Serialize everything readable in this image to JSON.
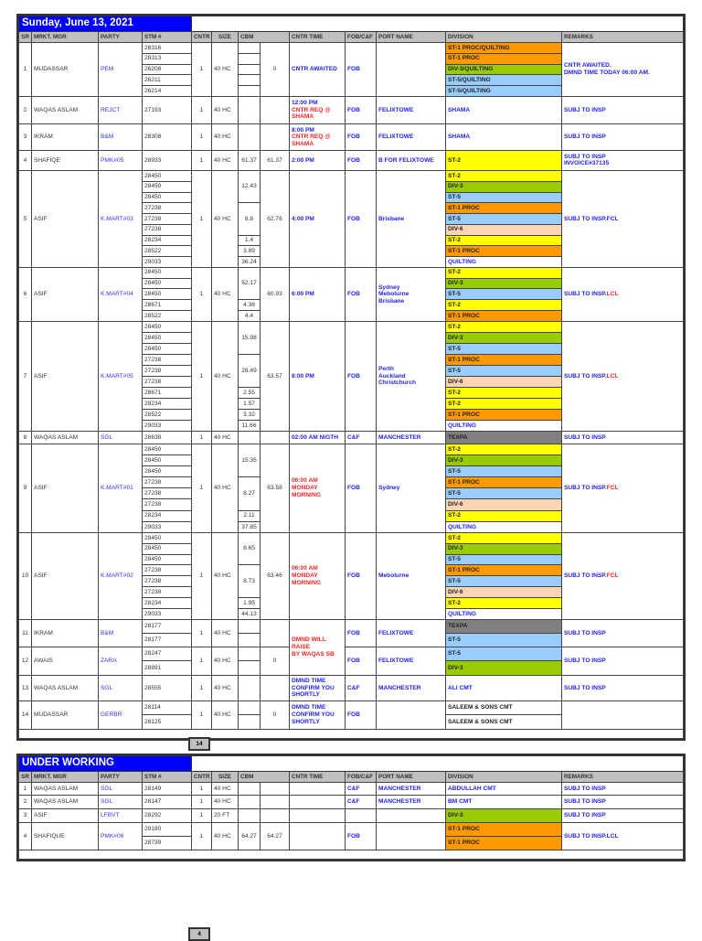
{
  "colors": {
    "orange": "#ff9900",
    "green": "#99cc00",
    "blue": "#99ccff",
    "yellow": "#ffff00",
    "peach": "#fcd5b4",
    "gray": "#808080",
    "red": "#ff2020",
    "link": "#2222ee"
  },
  "headers": [
    "SR",
    "MRKT. MGR",
    "PARTY",
    "STM #",
    "CNTR",
    "SIZE",
    "CBM",
    "CNTR TIME",
    "FOB/C&F",
    "PORT NAME",
    "DIVISION",
    "REMARKS"
  ],
  "main": {
    "title": "Sunday, June 13, 2021",
    "total": "14",
    "rows": [
      {
        "sr": "1",
        "mgr": "MUDASSAR",
        "party": "PEM",
        "stm": [
          "28316",
          "28313",
          "26208",
          "26211",
          "26214"
        ],
        "cntr": "1",
        "size": "40 HC",
        "cbm1": [
          {
            "v": "",
            "span": 1
          },
          {
            "v": "",
            "span": 1
          },
          {
            "v": "",
            "span": 1
          },
          {
            "v": "",
            "span": 1
          },
          {
            "v": "",
            "span": 1
          }
        ],
        "cbm2": "0",
        "time": [
          {
            "t": "CNTR AWAITED",
            "c": "link"
          }
        ],
        "fob": "FOB",
        "port": [],
        "division": [
          {
            "t": "ST-1 PROC/QUILTING",
            "bg": "orange"
          },
          {
            "t": "ST-1 PROC",
            "bg": "orange"
          },
          {
            "t": "DIV-3/QUILTING",
            "bg": "green"
          },
          {
            "t": "ST-5/QUILTING",
            "bg": "blue"
          },
          {
            "t": "ST-5/QUILTING",
            "bg": "blue"
          }
        ],
        "remarks": [
          {
            "t": "CNTR AWAITED.",
            "c": "link"
          },
          {
            "t": "DMND TIME TODAY 06:00 AM.",
            "c": "link"
          }
        ]
      },
      {
        "sr": "2",
        "mgr": "WAQAS ASLAM",
        "party": "REJCT",
        "stm": [
          "27193"
        ],
        "cntr": "1",
        "size": "40 HC",
        "cbm1": "",
        "cbm2": "",
        "time": [
          {
            "t": "12:00 PM",
            "c": "link"
          },
          {
            "t": "CNTR REQ @",
            "c": "red"
          },
          {
            "t": "SHAMA",
            "c": "red"
          }
        ],
        "fob": "FOB",
        "port": [
          "FELIXTOWE"
        ],
        "division": {
          "t": "SHAMA",
          "c": "link"
        },
        "remarks": [
          {
            "t": "SUBJ TO INSP",
            "c": "link"
          }
        ]
      },
      {
        "sr": "3",
        "mgr": "IKRAM",
        "party": "B&M",
        "stm": [
          "28308"
        ],
        "cntr": "1",
        "size": "40 HC",
        "cbm1": "",
        "cbm2": "",
        "time": [
          {
            "t": "8:00 PM",
            "c": "link"
          },
          {
            "t": "CNTR REQ @",
            "c": "red"
          },
          {
            "t": "SHAMA",
            "c": "red"
          }
        ],
        "fob": "FOB",
        "port": [
          "FELIXTOWE"
        ],
        "division": {
          "t": "SHAMA",
          "c": "link"
        },
        "remarks": [
          {
            "t": "SUBJ TO INSP",
            "c": "link"
          }
        ]
      },
      {
        "sr": "4",
        "mgr": "SHAFIQE",
        "party": "PMK#05",
        "stm": [
          "28933"
        ],
        "cntr": "1",
        "size": "40 HC",
        "cbm1": "61.37",
        "cbm2": "61.37",
        "time": [
          {
            "t": "2:00 PM",
            "c": "link"
          }
        ],
        "fob": "FOB",
        "port": [
          "B FOR FELIXTOWE"
        ],
        "division": [
          {
            "t": "ST-2",
            "bg": "yellow"
          }
        ],
        "remarks": [
          {
            "t": "SUBJ TO INSP",
            "c": "link"
          },
          {
            "t": "INVOICE#37135",
            "c": "link"
          }
        ]
      },
      {
        "sr": "5",
        "mgr": "ASIF",
        "party": "K.MART#03",
        "stm": [
          "28450",
          "28450",
          "28450",
          "27238",
          "27238",
          "27238",
          "28234",
          "28522",
          "29033"
        ],
        "cntr": "1",
        "size": "40 HC",
        "cbm1": [
          {
            "v": "12.43",
            "span": 3
          },
          {
            "v": "8.8",
            "span": 3
          },
          {
            "v": "1.4",
            "span": 1
          },
          {
            "v": "3.89",
            "span": 1
          },
          {
            "v": "36.24",
            "span": 1
          }
        ],
        "cbm2": "62.76",
        "time": [
          {
            "t": "4:00 PM",
            "c": "link"
          }
        ],
        "fob": "FOB",
        "port": [
          "Brisbane"
        ],
        "division": [
          {
            "t": "ST-2",
            "bg": "yellow"
          },
          {
            "t": "DIV-3",
            "bg": "green"
          },
          {
            "t": "ST-5",
            "bg": "blue"
          },
          {
            "t": "ST-1 PROC",
            "bg": "orange"
          },
          {
            "t": "ST-5",
            "bg": "blue"
          },
          {
            "t": "DIV-6",
            "bg": "peach"
          },
          {
            "t": "ST-2",
            "bg": "yellow"
          },
          {
            "t": "ST-1 PROC",
            "bg": "orange"
          },
          {
            "t": "QUILTING",
            "bg": "",
            "c": "link"
          }
        ],
        "remarks": [
          {
            "t": "SUBJ TO INSP.",
            "c": "link"
          },
          {
            "t": "FCL",
            "c": "link"
          }
        ]
      },
      {
        "sr": "6",
        "mgr": "ASIF",
        "party": "K.MART#04",
        "stm": [
          "28450",
          "28450",
          "28450",
          "28671",
          "28522"
        ],
        "cntr": "1",
        "size": "40 HC",
        "cbm1": [
          {
            "v": "52.17",
            "span": 3
          },
          {
            "v": "4.36",
            "span": 1
          },
          {
            "v": "4.4",
            "span": 1
          }
        ],
        "cbm2": "60.93",
        "time": [
          {
            "t": "6:00 PM",
            "c": "link"
          }
        ],
        "fob": "FOB",
        "port": [
          "Sydney",
          "Mebolurne",
          "Brisbane"
        ],
        "division": [
          {
            "t": "ST-2",
            "bg": "yellow"
          },
          {
            "t": "DIV-3",
            "bg": "green"
          },
          {
            "t": "ST-5",
            "bg": "blue"
          },
          {
            "t": "ST-2",
            "bg": "yellow"
          },
          {
            "t": "ST-1 PROC",
            "bg": "orange"
          }
        ],
        "remarks": [
          {
            "t": "SUBJ TO INSP.",
            "c": "link"
          },
          {
            "t": "LCL",
            "c": "red"
          }
        ]
      },
      {
        "sr": "7",
        "mgr": "ASIF",
        "party": "K.MART#05",
        "stm": [
          "28450",
          "28450",
          "28450",
          "27238",
          "27238",
          "27238",
          "28671",
          "28234",
          "28522",
          "29033"
        ],
        "cntr": "1",
        "size": "40 HC",
        "cbm1": [
          {
            "v": "15.98",
            "span": 3
          },
          {
            "v": "28.49",
            "span": 3
          },
          {
            "v": "2.55",
            "span": 1
          },
          {
            "v": "1.57",
            "span": 1
          },
          {
            "v": "3.32",
            "span": 1
          },
          {
            "v": "11.66",
            "span": 1
          }
        ],
        "cbm2": "63.57",
        "time": [
          {
            "t": "8:00 PM",
            "c": "link"
          }
        ],
        "fob": "FOB",
        "port": [
          "Perth",
          "Auckland",
          "Christchurch"
        ],
        "division": [
          {
            "t": "ST-2",
            "bg": "yellow"
          },
          {
            "t": "DIV-3",
            "bg": "green"
          },
          {
            "t": "ST-5",
            "bg": "blue"
          },
          {
            "t": "ST-1 PROC",
            "bg": "orange"
          },
          {
            "t": "ST-5",
            "bg": "blue"
          },
          {
            "t": "DIV-6",
            "bg": "peach"
          },
          {
            "t": "ST-2",
            "bg": "yellow"
          },
          {
            "t": "ST-2",
            "bg": "yellow"
          },
          {
            "t": "ST-1 PROC",
            "bg": "orange"
          },
          {
            "t": "QUILTING",
            "bg": "",
            "c": "link"
          }
        ],
        "remarks": [
          {
            "t": "SUBJ TO INSP.",
            "c": "link"
          },
          {
            "t": "LCL",
            "c": "red"
          }
        ]
      },
      {
        "sr": "8",
        "mgr": "WAQAS ASLAM",
        "party": "SGL",
        "stm": [
          "28638"
        ],
        "cntr": "1",
        "size": "40 HC",
        "cbm1": "",
        "cbm2": "",
        "time": [
          {
            "t": "02:00 AM NIGTH",
            "c": "link"
          }
        ],
        "fob": "C&F",
        "port": [
          "MANCHESTER"
        ],
        "division": [
          {
            "t": "TEXPA",
            "bg": "gray"
          }
        ],
        "remarks": [
          {
            "t": "SUBJ TO INSP",
            "c": "link"
          }
        ]
      },
      {
        "sr": "9",
        "mgr": "ASIF",
        "party": "K.MART#01",
        "stm": [
          "28450",
          "28450",
          "28450",
          "27238",
          "27238",
          "27238",
          "28234",
          "29033"
        ],
        "cntr": "1",
        "size": "40 HC",
        "cbm1": [
          {
            "v": "15.35",
            "span": 3
          },
          {
            "v": "8.27",
            "span": 3
          },
          {
            "v": "2.11",
            "span": 1
          },
          {
            "v": "37.85",
            "span": 1
          }
        ],
        "cbm2": "63.58",
        "time": [
          {
            "t": "06:00 AM",
            "c": "red"
          },
          {
            "t": "MONDAY",
            "c": "red"
          },
          {
            "t": "MORNING",
            "c": "red"
          }
        ],
        "fob": "FOB",
        "port": [
          "Sydney"
        ],
        "division": [
          {
            "t": "ST-2",
            "bg": "yellow"
          },
          {
            "t": "DIV-3",
            "bg": "green"
          },
          {
            "t": "ST-5",
            "bg": "blue"
          },
          {
            "t": "ST-1 PROC",
            "bg": "orange"
          },
          {
            "t": "ST-5",
            "bg": "blue"
          },
          {
            "t": "DIV-6",
            "bg": "peach"
          },
          {
            "t": "ST-2",
            "bg": "yellow"
          },
          {
            "t": "QUILTING",
            "bg": "",
            "c": "link"
          }
        ],
        "remarks": [
          {
            "t": "SUBJ TO INSP.",
            "c": "link"
          },
          {
            "t": "FCL",
            "c": "red"
          }
        ]
      },
      {
        "sr": "10",
        "mgr": "ASIF",
        "party": "K.MART#02",
        "stm": [
          "28450",
          "28450",
          "28450",
          "27238",
          "27238",
          "27238",
          "28234",
          "29033"
        ],
        "cntr": "1",
        "size": "40 HC",
        "cbm1": [
          {
            "v": "8.65",
            "span": 3
          },
          {
            "v": "8.73",
            "span": 3
          },
          {
            "v": "1.95",
            "span": 1
          },
          {
            "v": "44.13",
            "span": 1
          }
        ],
        "cbm2": "63.46",
        "time": [
          {
            "t": "06:00 AM",
            "c": "red"
          },
          {
            "t": "MONDAY",
            "c": "red"
          },
          {
            "t": "MORNING",
            "c": "red"
          }
        ],
        "fob": "FOB",
        "port": [
          "Mebolurne"
        ],
        "division": [
          {
            "t": "ST-2",
            "bg": "yellow"
          },
          {
            "t": "DIV-3",
            "bg": "green"
          },
          {
            "t": "ST-5",
            "bg": "blue"
          },
          {
            "t": "ST-1 PROC",
            "bg": "orange"
          },
          {
            "t": "ST-5",
            "bg": "blue"
          },
          {
            "t": "DIV-6",
            "bg": "peach"
          },
          {
            "t": "ST-2",
            "bg": "yellow"
          },
          {
            "t": "QUILTING",
            "bg": "",
            "c": "link"
          }
        ],
        "remarks": [
          {
            "t": "SUBJ TO INSP.",
            "c": "link"
          },
          {
            "t": "FCL",
            "c": "red"
          }
        ]
      },
      {
        "sr": "11",
        "mgr": "IKRAM",
        "party": "B&M",
        "stm": [
          "28177",
          "28177"
        ],
        "cntr": "1",
        "size": "40 HC",
        "cbm1": [
          {
            "v": "",
            "span": 1
          },
          {
            "v": "",
            "span": 1
          }
        ],
        "cbm2": "",
        "time": [
          {
            "t": "DMND WILL RAISE",
            "c": "red"
          },
          {
            "t": "BY WAQAS SB",
            "c": "red"
          }
        ],
        "time_rows": 2,
        "fob": "FOB",
        "port": [
          "FELIXTOWE"
        ],
        "division": [
          {
            "t": "TEXPA",
            "bg": "gray"
          },
          {
            "t": "ST-5",
            "bg": "blue"
          }
        ],
        "remarks": [
          {
            "t": "SUBJ TO INSP",
            "c": "link"
          }
        ]
      },
      {
        "sr": "12",
        "mgr": "AWAIS",
        "party": "ZARA",
        "stm": [
          "28247",
          "28891"
        ],
        "cntr": "1",
        "size": "40 HC",
        "cbm1": [
          {
            "v": "",
            "span": 1
          },
          {
            "v": "",
            "span": 1
          }
        ],
        "cbm2": "0",
        "time": null,
        "fob": "FOB",
        "port": [
          "FELIXTOWE"
        ],
        "division": [
          {
            "t": "ST-5",
            "bg": "blue"
          },
          {
            "t": "DIV-3",
            "bg": "green"
          }
        ],
        "remarks": [
          {
            "t": "SUBJ TO INSP",
            "c": "link"
          }
        ]
      },
      {
        "sr": "13",
        "mgr": "WAQAS ASLAM",
        "party": "SGL",
        "stm": [
          "28555"
        ],
        "cntr": "1",
        "size": "40 HC",
        "cbm1": "",
        "cbm2": "",
        "time": [
          {
            "t": "DMND TIME",
            "c": "link"
          },
          {
            "t": "CONFIRM YOU",
            "c": "link"
          },
          {
            "t": "SHORTLY",
            "c": "link"
          }
        ],
        "fob": "C&F",
        "port": [
          "MANCHESTER"
        ],
        "division": {
          "t": "ALI CMT",
          "c": "link"
        },
        "remarks": [
          {
            "t": "SUBJ TO INSP",
            "c": "link"
          }
        ]
      },
      {
        "sr": "14",
        "mgr": "MUDASSAR",
        "party": "GERBR",
        "stm": [
          "28114",
          "28125"
        ],
        "cntr": "1",
        "size": "40 HC",
        "cbm1": [
          {
            "v": "",
            "span": 1
          },
          {
            "v": "",
            "span": 1
          }
        ],
        "cbm2": "0",
        "time": [
          {
            "t": "DMND TIME",
            "c": "link"
          },
          {
            "t": "CONFIRM YOU",
            "c": "link"
          },
          {
            "t": "SHORTLY",
            "c": "link"
          }
        ],
        "fob": "FOB",
        "port": [],
        "division": [
          {
            "t": "SALEEM & SONS CMT",
            "bg": ""
          },
          {
            "t": "SALEEM & SONS CMT",
            "bg": ""
          }
        ],
        "remarks": []
      }
    ]
  },
  "under": {
    "title": "UNDER WORKING",
    "total": "4",
    "rows": [
      {
        "sr": "1",
        "mgr": "WAQAS ASLAM",
        "party": "SGL",
        "stm": [
          "28149"
        ],
        "cntr": "1",
        "size": "40 HC",
        "cbm1": "",
        "cbm2": "",
        "time": [],
        "fob": "C&F",
        "port": [
          "MANCHESTER"
        ],
        "division": {
          "t": "ABDULLAH CMT",
          "c": "link"
        },
        "remarks": [
          {
            "t": "SUBJ TO INSP",
            "c": "link"
          }
        ]
      },
      {
        "sr": "2",
        "mgr": "WAQAS ASLAM",
        "party": "SGL",
        "stm": [
          "28147"
        ],
        "cntr": "1",
        "size": "40 HC",
        "cbm1": "",
        "cbm2": "",
        "time": [],
        "fob": "C&F",
        "port": [
          "MANCHESTER"
        ],
        "division": {
          "t": "BM CMT",
          "c": "link"
        },
        "remarks": [
          {
            "t": "SUBJ TO INSP",
            "c": "link"
          }
        ]
      },
      {
        "sr": "3",
        "mgr": "ASIF",
        "party": "LFBVT",
        "stm": [
          "28292"
        ],
        "cntr": "1",
        "size": "20 FT",
        "cbm1": "",
        "cbm2": "",
        "time": [],
        "fob": "",
        "port": [],
        "division": [
          {
            "t": "DIV-3",
            "bg": "green"
          }
        ],
        "remarks": [
          {
            "t": "SUBJ TO INSP",
            "c": "link"
          }
        ]
      },
      {
        "sr": "4",
        "mgr": "SHAFIQUE",
        "party": "PMK#06",
        "stm": [
          "29180",
          "28739"
        ],
        "cntr": "1",
        "size": "40 HC",
        "cbm1": "64.27",
        "cbm2": "64.27",
        "time": [],
        "fob": "FOB",
        "port": [],
        "division": [
          {
            "t": "ST-1 PROC",
            "bg": "orange"
          },
          {
            "t": "ST-1 PROC",
            "bg": "orange"
          }
        ],
        "remarks": [
          {
            "t": "SUBJ TO INSP.LCL",
            "c": "link"
          }
        ]
      }
    ]
  }
}
